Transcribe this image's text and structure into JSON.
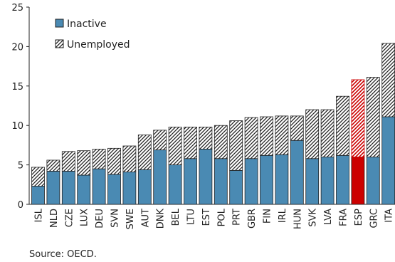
{
  "chart_data": {
    "type": "bar",
    "stacked": true,
    "categories": [
      "ISL",
      "NLD",
      "CZE",
      "LUX",
      "DEU",
      "SVN",
      "SWE",
      "AUT",
      "DNK",
      "BEL",
      "LTU",
      "EST",
      "POL",
      "PRT",
      "GBR",
      "FIN",
      "IRL",
      "HUN",
      "SVK",
      "LVA",
      "FRA",
      "ESP",
      "GRC",
      "ITA"
    ],
    "series": [
      {
        "name": "Inactive",
        "color": "#4a8ab3",
        "pattern": "solid",
        "values": [
          2.3,
          4.2,
          4.2,
          3.7,
          4.5,
          3.8,
          4.1,
          4.4,
          6.9,
          5.0,
          5.8,
          7.0,
          5.8,
          4.3,
          5.8,
          6.2,
          6.3,
          8.1,
          5.8,
          6.0,
          6.2,
          6.0,
          6.0,
          11.1
        ]
      },
      {
        "name": "Unemployed",
        "color": "#222222",
        "pattern": "hatched",
        "values": [
          2.4,
          1.4,
          2.5,
          3.1,
          2.5,
          3.3,
          3.3,
          4.4,
          2.5,
          4.8,
          4.0,
          2.8,
          4.2,
          6.3,
          5.2,
          4.9,
          4.9,
          3.1,
          6.2,
          6.0,
          7.5,
          9.8,
          10.1,
          9.3
        ]
      }
    ],
    "highlight": {
      "category": "ESP",
      "solid_color": "#cc0000",
      "hatch_color": "#cc0000"
    },
    "ylim": [
      0,
      25
    ],
    "yticks": [
      0,
      5,
      10,
      15,
      20,
      25
    ],
    "grid": false,
    "legend_position": "top-left",
    "source": "Source: OECD."
  }
}
